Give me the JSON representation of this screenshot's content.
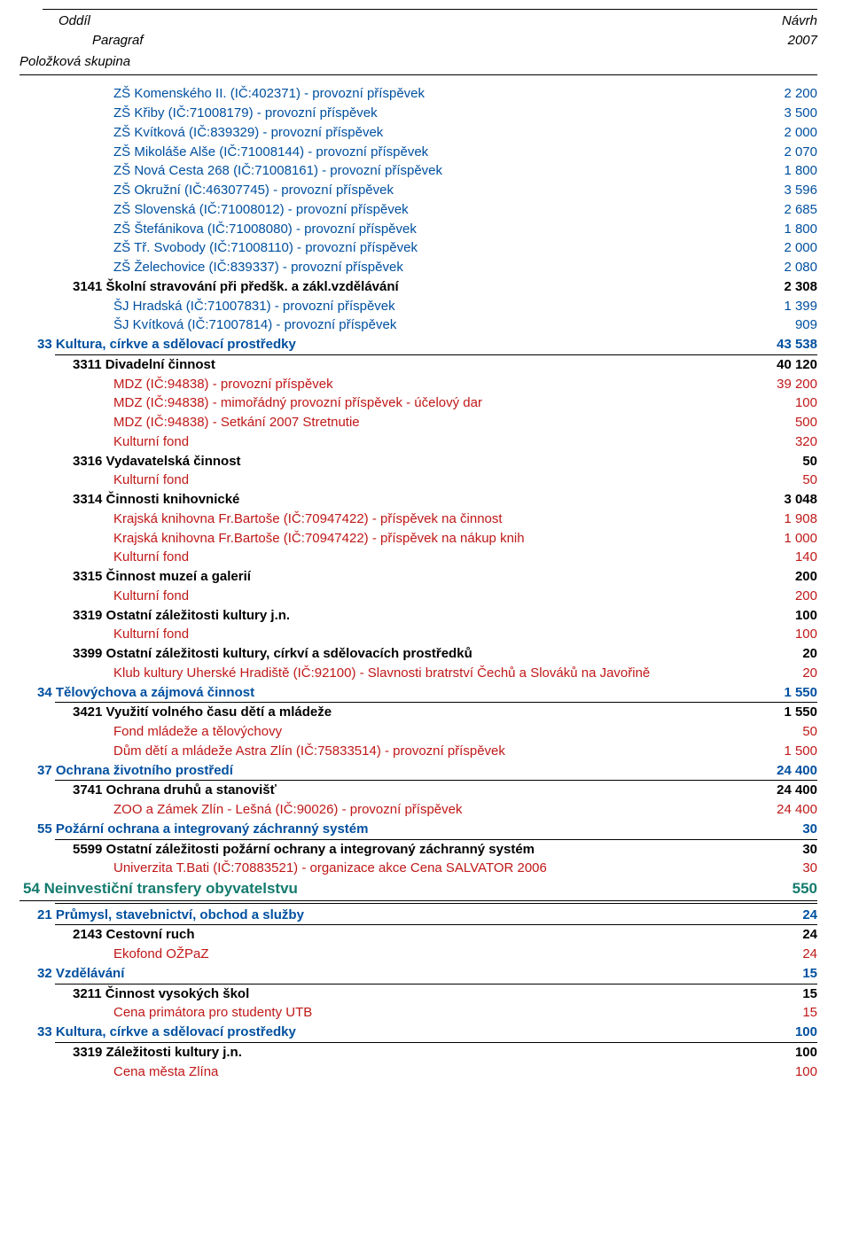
{
  "header": {
    "col1_l1": "Oddíl",
    "col1_l2": "Paragraf",
    "col1_l3": "Položková skupina",
    "col2_l1": "Návrh",
    "col2_l2": "2007"
  },
  "rows": [
    {
      "lvl": "ind2",
      "style": "blue",
      "label": "ZŠ Komenského II. (IČ:402371) - provozní příspěvek",
      "val": "2 200"
    },
    {
      "lvl": "ind2",
      "style": "blue",
      "label": "ZŠ Křiby (IČ:71008179) - provozní příspěvek",
      "val": "3 500"
    },
    {
      "lvl": "ind2",
      "style": "blue",
      "label": "ZŠ Kvítková (IČ:839329) - provozní příspěvek",
      "val": "2 000"
    },
    {
      "lvl": "ind2",
      "style": "blue",
      "label": "ZŠ Mikoláše Alše (IČ:71008144) - provozní příspěvek",
      "val": "2 070"
    },
    {
      "lvl": "ind2",
      "style": "blue",
      "label": "ZŠ Nová Cesta 268 (IČ:71008161) - provozní příspěvek",
      "val": "1 800"
    },
    {
      "lvl": "ind2",
      "style": "blue",
      "label": "ZŠ Okružní (IČ:46307745) - provozní příspěvek",
      "val": "3 596"
    },
    {
      "lvl": "ind2",
      "style": "blue",
      "label": "ZŠ Slovenská (IČ:71008012) - provozní příspěvek",
      "val": "2 685"
    },
    {
      "lvl": "ind2",
      "style": "blue",
      "label": "ZŠ Štefánikova (IČ:71008080) - provozní příspěvek",
      "val": "1 800"
    },
    {
      "lvl": "ind2",
      "style": "blue",
      "label": "ZŠ Tř. Svobody (IČ:71008110) - provozní příspěvek",
      "val": "2 000"
    },
    {
      "lvl": "ind2",
      "style": "blue",
      "label": "ZŠ Želechovice (IČ:839337) - provozní příspěvek",
      "val": "2 080"
    },
    {
      "lvl": "ind1",
      "style": "black-bold",
      "label": "3141 Školní stravování při předšk. a zákl.vzdělávání",
      "val": "2 308"
    },
    {
      "lvl": "ind2",
      "style": "blue",
      "label": "ŠJ Hradská (IČ:71007831) - provozní příspěvek",
      "val": "1 399"
    },
    {
      "lvl": "ind2",
      "style": "blue",
      "label": "ŠJ Kvítková (IČ:71007814) - provozní příspěvek",
      "val": "909"
    },
    {
      "lvl": "ind0",
      "style": "blue-bold",
      "rule": "short",
      "label": "33 Kultura, církve a sdělovací prostředky",
      "val": "43 538"
    },
    {
      "lvl": "ind1",
      "style": "black-bold",
      "label": "3311 Divadelní činnost",
      "val": "40 120"
    },
    {
      "lvl": "ind2",
      "style": "red",
      "label": "MDZ (IČ:94838) - provozní příspěvek",
      "val": "39 200"
    },
    {
      "lvl": "ind2",
      "style": "red",
      "label": "MDZ (IČ:94838) - mimořádný provozní příspěvek - účelový dar",
      "val": "100"
    },
    {
      "lvl": "ind2",
      "style": "red",
      "label": "MDZ (IČ:94838) - Setkání 2007 Stretnutie",
      "val": "500"
    },
    {
      "lvl": "ind2",
      "style": "red",
      "label": "Kulturní fond",
      "val": "320"
    },
    {
      "lvl": "ind1",
      "style": "black-bold",
      "label": "3316 Vydavatelská činnost",
      "val": "50"
    },
    {
      "lvl": "ind2",
      "style": "red",
      "label": "Kulturní fond",
      "val": "50"
    },
    {
      "lvl": "ind1",
      "style": "black-bold",
      "label": "3314 Činnosti knihovnické",
      "val": "3 048"
    },
    {
      "lvl": "ind2",
      "style": "red",
      "label": "Krajská knihovna Fr.Bartoše (IČ:70947422) - příspěvek na činnost",
      "val": "1 908"
    },
    {
      "lvl": "ind2",
      "style": "red",
      "label": "Krajská knihovna Fr.Bartoše (IČ:70947422) - příspěvek na nákup knih",
      "val": "1 000"
    },
    {
      "lvl": "ind2",
      "style": "red",
      "label": "Kulturní fond",
      "val": "140"
    },
    {
      "lvl": "ind1",
      "style": "black-bold",
      "label": "3315 Činnost muzeí a galerií",
      "val": "200"
    },
    {
      "lvl": "ind2",
      "style": "red",
      "label": "Kulturní fond",
      "val": "200"
    },
    {
      "lvl": "ind1",
      "style": "black-bold",
      "label": "3319 Ostatní záležitosti kultury j.n.",
      "val": "100"
    },
    {
      "lvl": "ind2",
      "style": "red",
      "label": "Kulturní fond",
      "val": "100"
    },
    {
      "lvl": "ind1",
      "style": "black-bold",
      "label": "3399 Ostatní záležitosti kultury, církví a sdělovacích prostředků",
      "val": "20"
    },
    {
      "lvl": "ind2",
      "style": "red",
      "label": "Klub kultury Uherské Hradiště (IČ:92100) - Slavnosti bratrství Čechů a Slováků na Javořině",
      "val": "20"
    },
    {
      "lvl": "ind0",
      "style": "blue-bold",
      "rule": "short",
      "label": "34 Tělovýchova a zájmová činnost",
      "val": "1 550"
    },
    {
      "lvl": "ind1",
      "style": "black-bold",
      "label": "3421 Využití volného času dětí a mládeže",
      "val": "1 550"
    },
    {
      "lvl": "ind2",
      "style": "red",
      "label": "Fond mládeže a tělovýchovy",
      "val": "50"
    },
    {
      "lvl": "ind2",
      "style": "red",
      "label": "Dům dětí a mládeže Astra Zlín (IČ:75833514) - provozní příspěvek",
      "val": "1 500"
    },
    {
      "lvl": "ind0",
      "style": "blue-bold",
      "rule": "short",
      "label": "37 Ochrana životního prostředí",
      "val": "24 400"
    },
    {
      "lvl": "ind1",
      "style": "black-bold",
      "label": "3741 Ochrana druhů a stanovišť",
      "val": "24 400"
    },
    {
      "lvl": "ind2",
      "style": "red",
      "label": "ZOO a Zámek Zlín - Lešná (IČ:90026) - provozní příspěvek",
      "val": "24 400"
    },
    {
      "lvl": "ind0",
      "style": "blue-bold",
      "rule": "short",
      "label": "55 Požární ochrana a integrovaný záchranný systém",
      "val": "30"
    },
    {
      "lvl": "ind1",
      "style": "black-bold",
      "label": "5599 Ostatní záležitosti požární ochrany a integrovaný záchranný systém",
      "val": "30"
    },
    {
      "lvl": "ind2",
      "style": "red",
      "label": "Univerzita T.Bati (IČ:70883521) -  organizace akce  Cena SALVATOR 2006",
      "val": "30"
    },
    {
      "lvl": "indX",
      "style": "teal-bold",
      "rule": "full",
      "label": "54 Neinvestiční transfery obyvatelstvu",
      "val": "550"
    },
    {
      "separator": true
    },
    {
      "lvl": "ind0",
      "style": "blue-bold",
      "rule": "short",
      "label": "21 Průmysl, stavebnictví, obchod a služby",
      "val": "24"
    },
    {
      "lvl": "ind1",
      "style": "black-bold",
      "label": "2143 Cestovní ruch",
      "val": "24"
    },
    {
      "lvl": "ind2",
      "style": "red",
      "label": "Ekofond OŽPaZ",
      "val": "24"
    },
    {
      "lvl": "ind0",
      "style": "blue-bold",
      "rule": "short",
      "label": "32 Vzdělávání",
      "val": "15"
    },
    {
      "lvl": "ind1",
      "style": "black-bold",
      "label": "3211 Činnost vysokých škol",
      "val": "15"
    },
    {
      "lvl": "ind2",
      "style": "red",
      "label": "Cena primátora pro studenty UTB",
      "val": "15"
    },
    {
      "lvl": "ind0",
      "style": "blue-bold",
      "rule": "short",
      "label": "33 Kultura, církve a sdělovací prostředky",
      "val": "100"
    },
    {
      "lvl": "ind1",
      "style": "black-bold",
      "label": "3319 Záležitosti kultury j.n.",
      "val": "100"
    },
    {
      "lvl": "ind2",
      "style": "red",
      "label": "Cena města Zlína",
      "val": "100"
    }
  ]
}
